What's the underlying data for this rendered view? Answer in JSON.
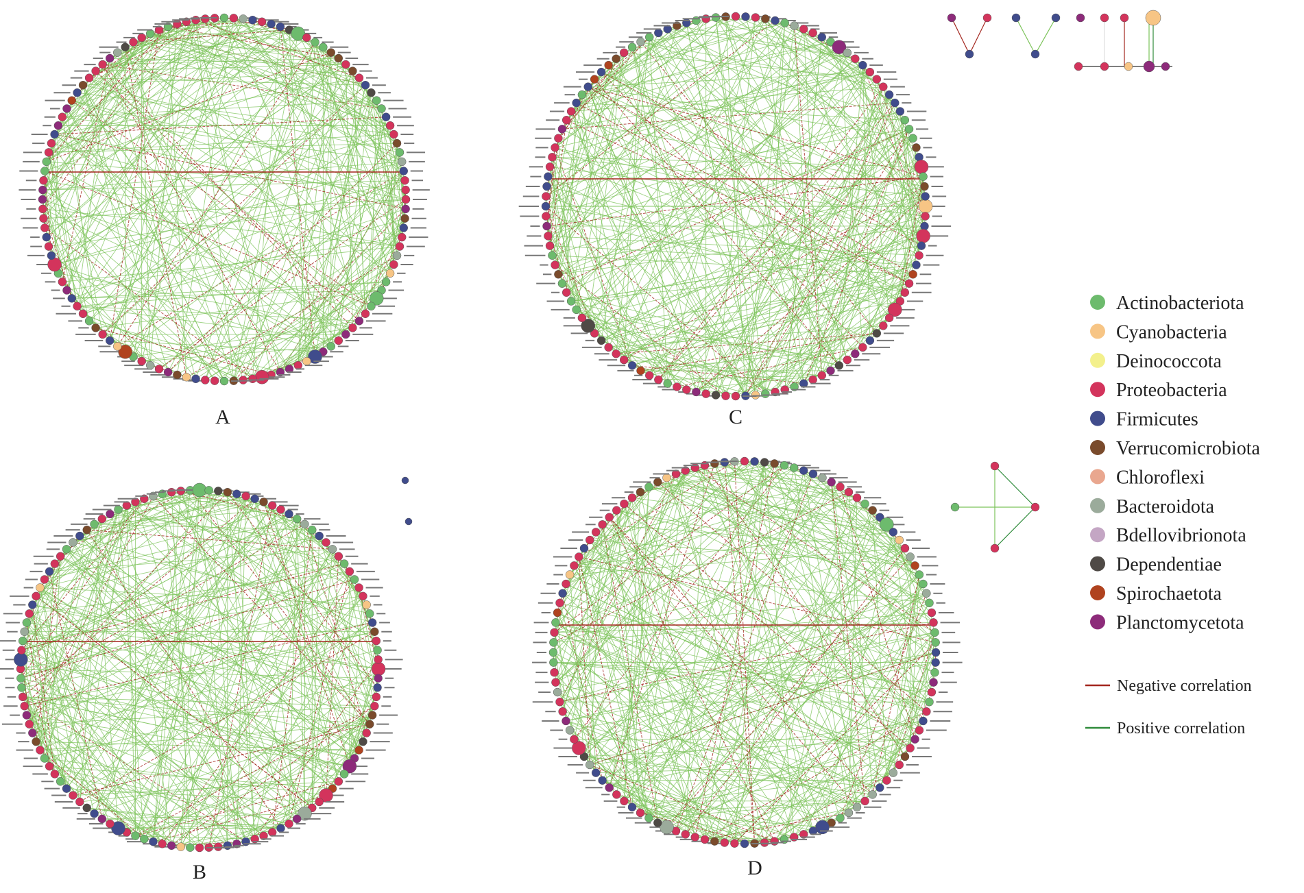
{
  "panels": [
    {
      "label": "A"
    },
    {
      "label": "B"
    },
    {
      "label": "C"
    },
    {
      "label": "D"
    }
  ],
  "legend": {
    "phyla": [
      {
        "name": "Actinobacteriota",
        "color": "#6dbb6d"
      },
      {
        "name": "Cyanobacteria",
        "color": "#f7c585"
      },
      {
        "name": "Deinococcota",
        "color": "#f3f08c"
      },
      {
        "name": "Proteobacteria",
        "color": "#d3345c"
      },
      {
        "name": "Firmicutes",
        "color": "#404c8c"
      },
      {
        "name": "Verrucomicrobiota",
        "color": "#7a4b2c"
      },
      {
        "name": "Chloroflexi",
        "color": "#e9a78f"
      },
      {
        "name": "Bacteroidota",
        "color": "#9bab9b"
      },
      {
        "name": "Bdellovibrionota",
        "color": "#c4a6c4"
      },
      {
        "name": "Dependentiae",
        "color": "#4f4a46"
      },
      {
        "name": "Spirochaetota",
        "color": "#b0431f"
      },
      {
        "name": "Planctomycetota",
        "color": "#8d2b7a"
      }
    ],
    "edges": [
      {
        "name": "Negative correlation",
        "color": "#a3261e"
      },
      {
        "name": "Positive correlation",
        "color": "#2e8b3a"
      }
    ]
  }
}
